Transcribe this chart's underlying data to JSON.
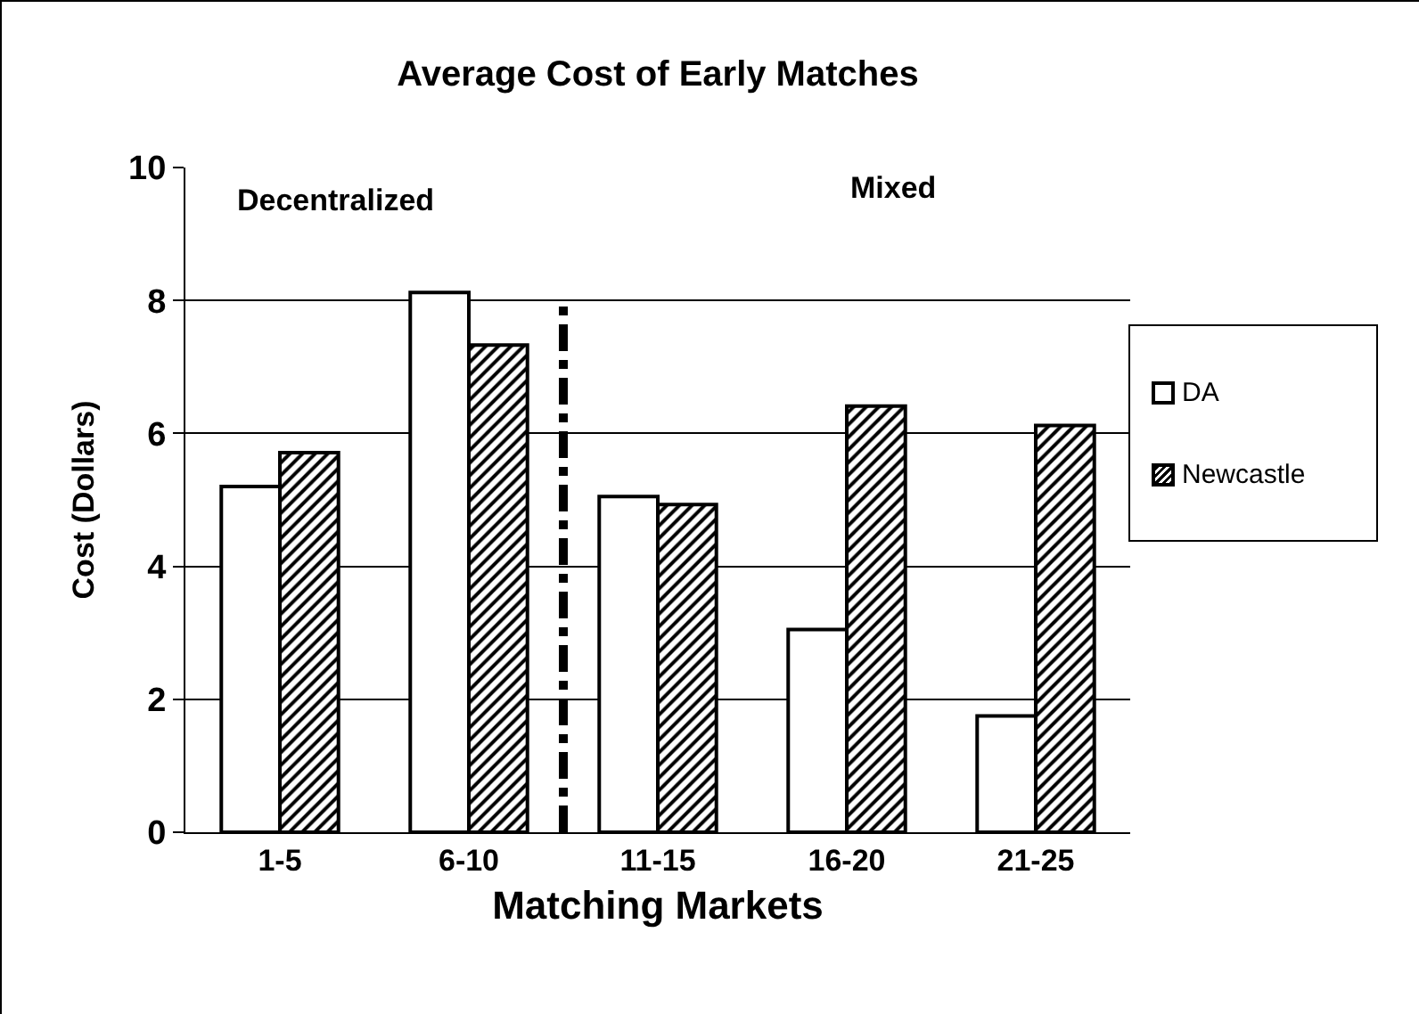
{
  "chart_data": {
    "type": "bar",
    "title": "Average Cost of Early Matches",
    "xlabel": "Matching Markets",
    "ylabel": "Cost (Dollars)",
    "categories": [
      "1-5",
      "6-10",
      "11-15",
      "16-20",
      "21-25"
    ],
    "series": [
      {
        "name": "DA",
        "color": "#ffffff",
        "values": [
          5.2,
          8.12,
          5.05,
          3.05,
          1.75
        ]
      },
      {
        "name": "Newcastle",
        "color": "#000000",
        "values": [
          5.71,
          7.33,
          4.93,
          6.41,
          6.12
        ]
      }
    ],
    "ylim": [
      0,
      10
    ],
    "yticks": [
      0,
      2,
      4,
      6,
      8,
      10
    ],
    "grid": "y",
    "legend": "right",
    "annotations": [
      "Decentralized",
      "Mixed"
    ]
  }
}
